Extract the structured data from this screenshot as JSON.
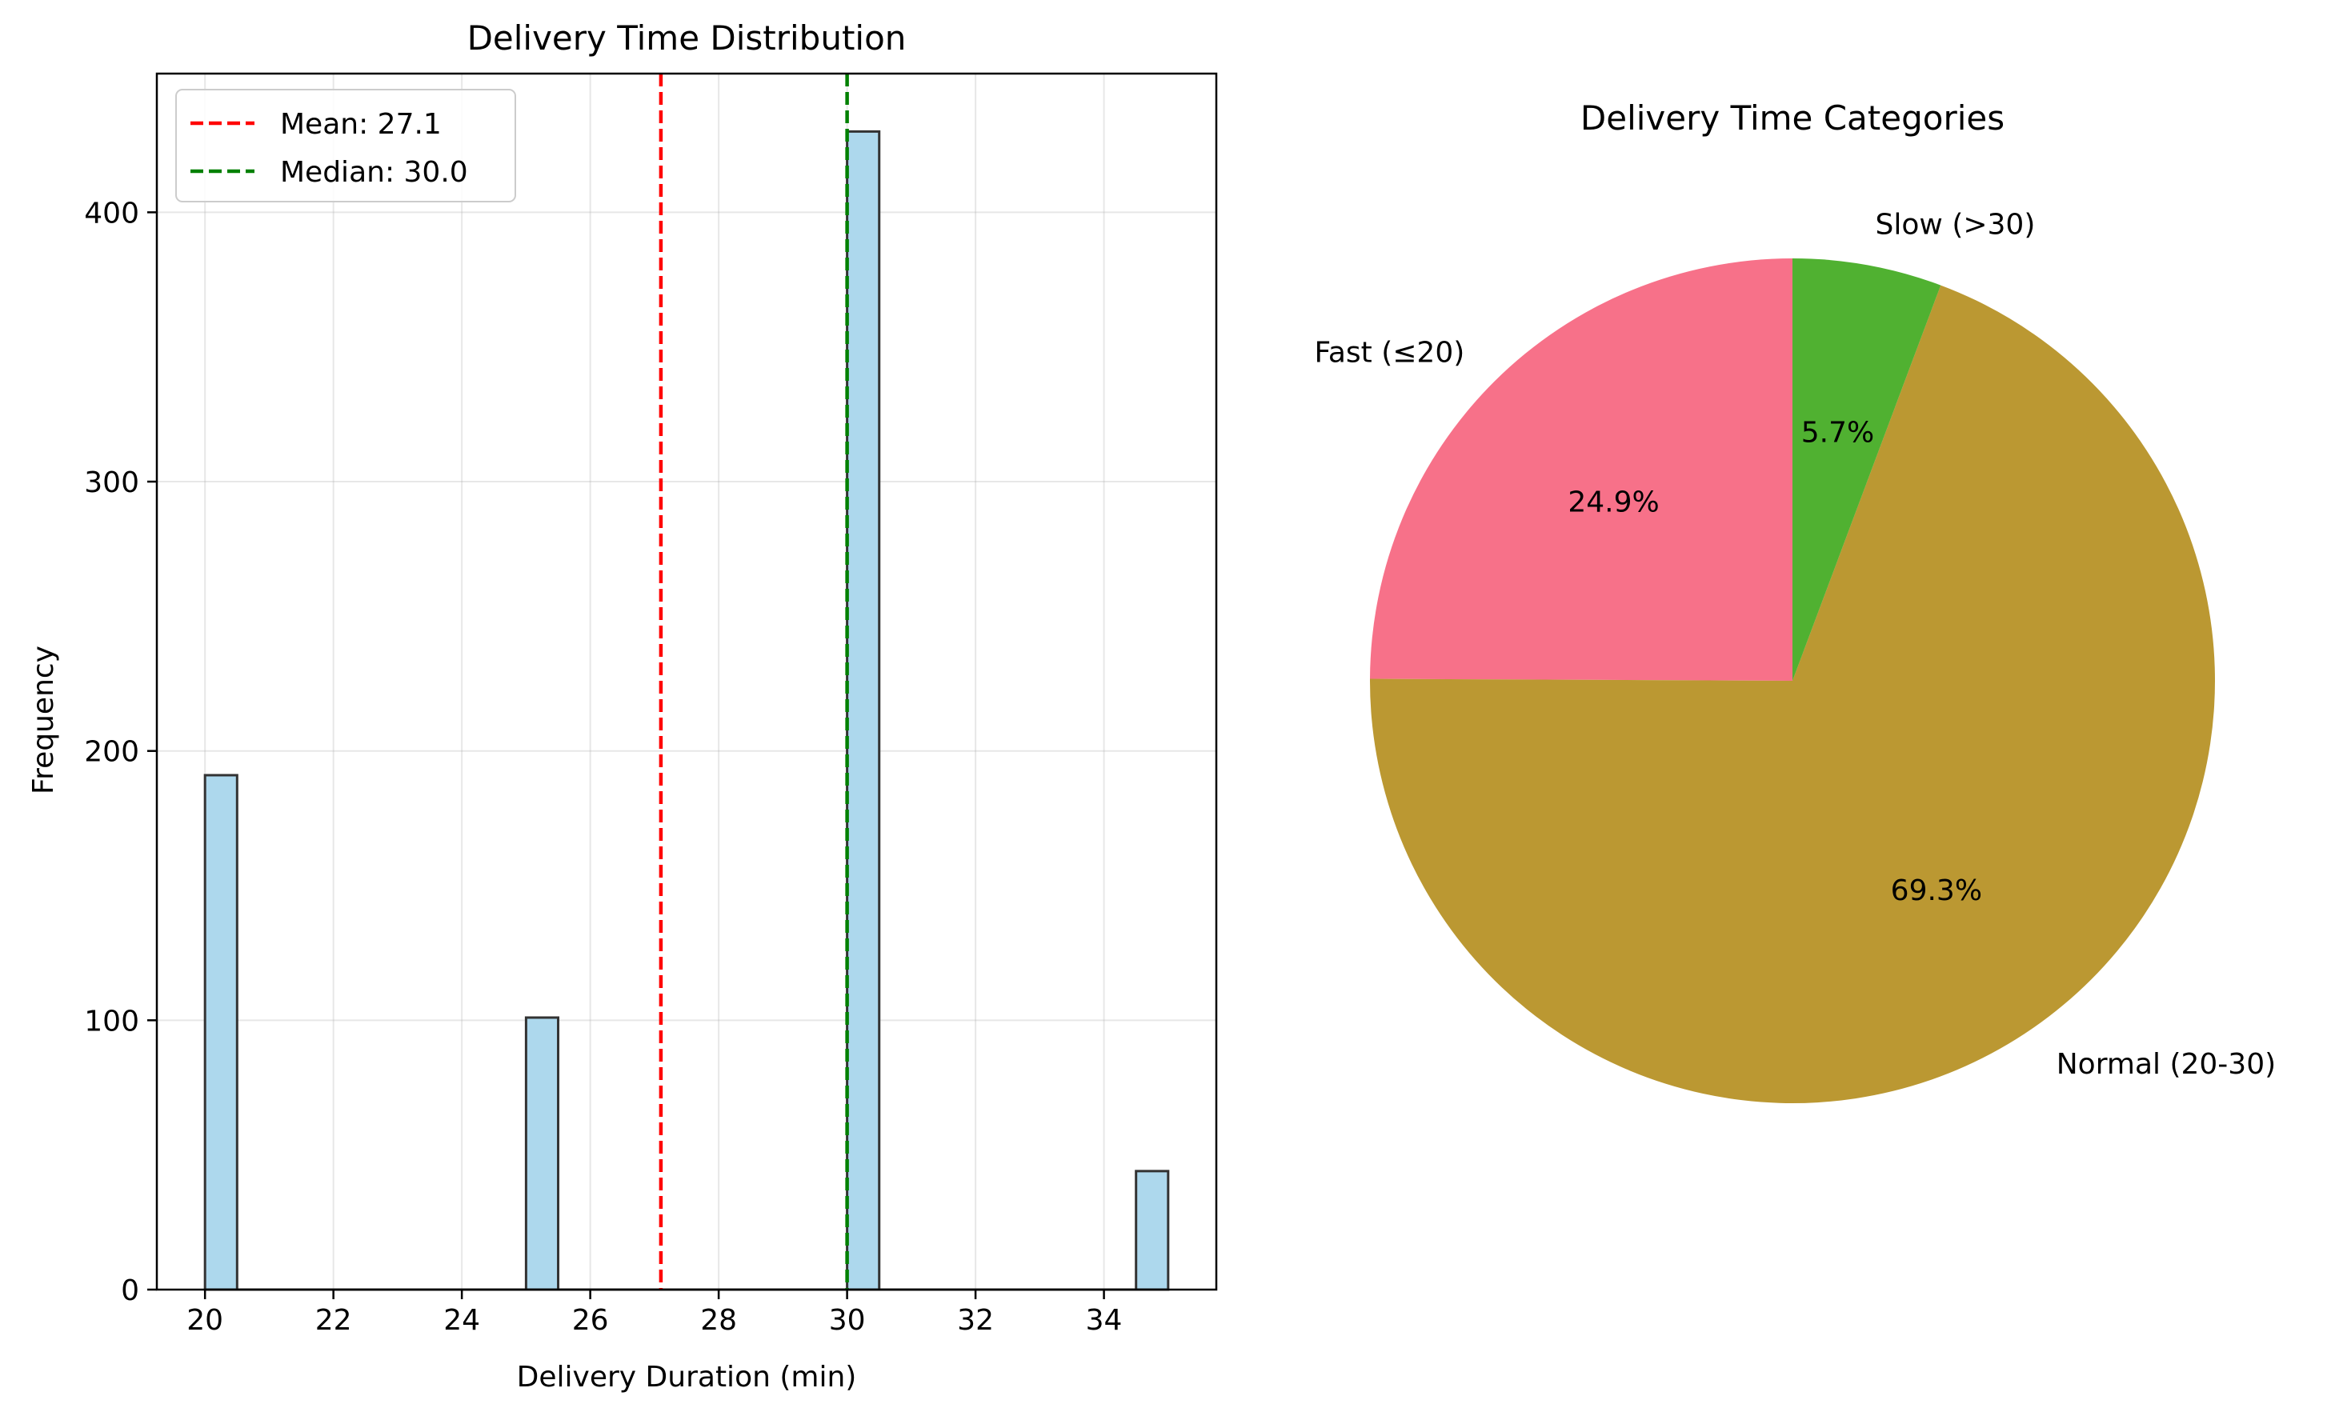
{
  "chart_data": [
    {
      "type": "histogram",
      "title": "Delivery Time Distribution",
      "xlabel": "Delivery Duration (min)",
      "ylabel": "Frequency",
      "xlim": [
        19.25,
        35.75
      ],
      "ylim": [
        0,
        451.5
      ],
      "xticks": [
        20,
        22,
        24,
        26,
        28,
        30,
        32,
        34
      ],
      "yticks": [
        0,
        100,
        200,
        300,
        400
      ],
      "grid": true,
      "bin_width": 0.5,
      "bins": [
        {
          "start": 20.0,
          "end": 20.5,
          "count": 191
        },
        {
          "start": 25.0,
          "end": 25.5,
          "count": 101
        },
        {
          "start": 30.0,
          "end": 30.5,
          "count": 430
        },
        {
          "start": 34.5,
          "end": 35.0,
          "count": 44
        }
      ],
      "bar_color": "#add8ed",
      "bar_edge_color": "#333333",
      "reference_lines": [
        {
          "label": "Mean: 27.1",
          "x": 27.1,
          "color": "#ff0000",
          "style": "dashed"
        },
        {
          "label": "Median: 30.0",
          "x": 30.0,
          "color": "#008000",
          "style": "dashed"
        }
      ],
      "legend": "top-left"
    },
    {
      "type": "pie",
      "title": "Delivery Time Categories",
      "start_angle_deg": 90,
      "direction": "counterclockwise",
      "slices": [
        {
          "label": "Fast (≤20)",
          "percent": 24.9,
          "pct_label": "24.9%",
          "color": "#f77189"
        },
        {
          "label": "Normal (20-30)",
          "percent": 69.3,
          "pct_label": "69.3%",
          "color": "#bb9832"
        },
        {
          "label": "Slow (>30)",
          "percent": 5.7,
          "pct_label": "5.7%",
          "color": "#50b131"
        }
      ]
    }
  ]
}
